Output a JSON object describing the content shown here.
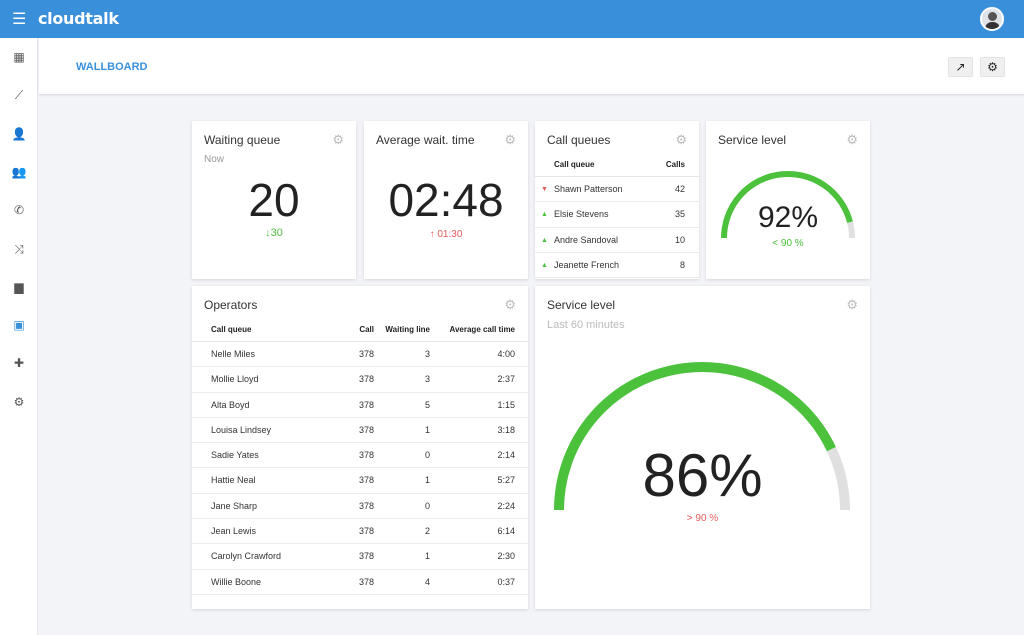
{
  "header": {
    "app_name": "cloudtalk",
    "menu_icon": "hamburger-icon"
  },
  "sidebar": {
    "items": [
      {
        "icon": "dashboard-icon",
        "glyph": "▦"
      },
      {
        "icon": "trending-icon",
        "glyph": "⟋"
      },
      {
        "icon": "person-icon",
        "glyph": "👤"
      },
      {
        "icon": "group-icon",
        "glyph": "👥"
      },
      {
        "icon": "phone-icon",
        "glyph": "✆"
      },
      {
        "icon": "shuffle-icon",
        "glyph": "⤨"
      },
      {
        "icon": "chat-icon",
        "glyph": "▆"
      },
      {
        "icon": "contacts-icon",
        "glyph": "▣",
        "active": true
      },
      {
        "icon": "puzzle-icon",
        "glyph": "✚"
      },
      {
        "icon": "settings-icon",
        "glyph": "⚙"
      }
    ]
  },
  "page": {
    "title": "WALLBOARD",
    "expand_glyph": "↗",
    "settings_glyph": "⚙"
  },
  "waiting_queue": {
    "title": "Waiting queue",
    "subtitle": "Now",
    "value": "20",
    "delta": "↓30",
    "delta_color": "#4cc13c"
  },
  "avg_wait": {
    "title": "Average wait. time",
    "value": "02:48",
    "delta": "↑ 01:30",
    "delta_color": "#e85a5a"
  },
  "call_queues": {
    "title": "Call queues",
    "headers": [
      "Call queue",
      "Calls"
    ],
    "rows": [
      {
        "trend": "down",
        "name": "Shawn Patterson",
        "calls": "42"
      },
      {
        "trend": "up",
        "name": "Elsie Stevens",
        "calls": "35"
      },
      {
        "trend": "up",
        "name": "Andre Sandoval",
        "calls": "10"
      },
      {
        "trend": "up",
        "name": "Jeanette French",
        "calls": "8"
      }
    ]
  },
  "service_level_small": {
    "title": "Service level",
    "value": "92%",
    "percent": 92,
    "target": "< 90 %",
    "target_color": "#4cc13c"
  },
  "operators": {
    "title": "Operators",
    "headers": [
      "Call queue",
      "Call",
      "Waiting line",
      "Average call time"
    ],
    "rows": [
      [
        "Nelle Miles",
        "378",
        "3",
        "4:00"
      ],
      [
        "Mollie Lloyd",
        "378",
        "3",
        "2:37"
      ],
      [
        "Alta Boyd",
        "378",
        "5",
        "1:15"
      ],
      [
        "Louisa Lindsey",
        "378",
        "1",
        "3:18"
      ],
      [
        "Sadie Yates",
        "378",
        "0",
        "2:14"
      ],
      [
        "Hattie Neal",
        "378",
        "1",
        "5:27"
      ],
      [
        "Jane Sharp",
        "378",
        "0",
        "2:24"
      ],
      [
        "Jean Lewis",
        "378",
        "2",
        "6:14"
      ],
      [
        "Carolyn Crawford",
        "378",
        "1",
        "2:30"
      ],
      [
        "Willie Boone",
        "378",
        "4",
        "0:37"
      ]
    ]
  },
  "service_level_large": {
    "title": "Service level",
    "subtitle": "Last 60 minutes",
    "value": "86%",
    "percent": 86,
    "target": "> 90 %",
    "target_color": "#e85a5a"
  },
  "colors": {
    "brand": "#3a8fdb",
    "gauge_fill": "#4cc13c",
    "gauge_track": "#e0e0e0",
    "up": "#4cc13c",
    "down": "#e85a5a"
  }
}
